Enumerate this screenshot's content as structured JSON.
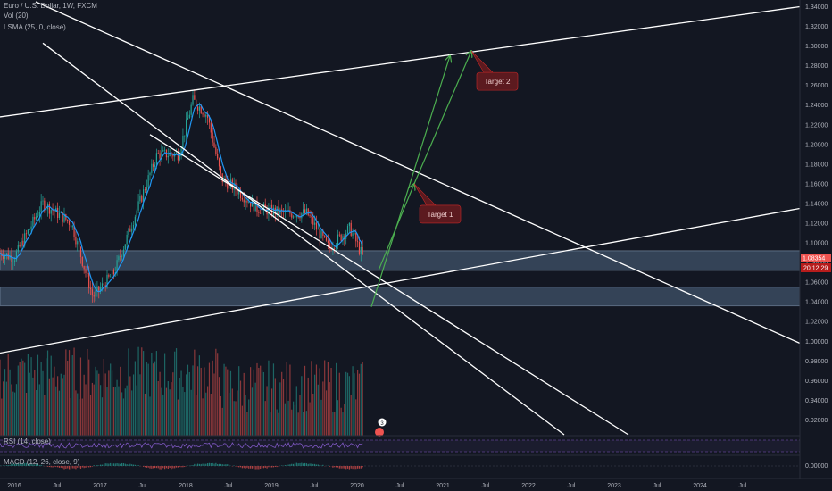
{
  "header": {
    "symbol_line": "Euro / U.S. Dollar, 1W, FXCM",
    "vol_label": "Vol (20)",
    "lsma_label": "LSMA (25, 0, close)"
  },
  "indicators": {
    "rsi_label": "RSI (14, close)",
    "macd_label": "MACD (12, 26, close, 9)"
  },
  "price_badges": {
    "last_price": "1.08354",
    "countdown": "20:12:29"
  },
  "colors": {
    "background": "#131722",
    "up": "#26a69a",
    "down": "#ef5350",
    "lsma": "#2196f3",
    "trendline": "#ffffff",
    "arrow": "#4caf50",
    "zone": "#5d7a99",
    "label_bg": "#5c1a1f",
    "rsi": "#7e57c2"
  },
  "chart_data": {
    "type": "candlestick",
    "title": "Euro / U.S. Dollar, 1W, FXCM",
    "y_axis": {
      "side": "right",
      "ticks": [
        "1.34000",
        "1.32000",
        "1.30000",
        "1.28000",
        "1.26000",
        "1.24000",
        "1.22000",
        "1.20000",
        "1.18000",
        "1.16000",
        "1.14000",
        "1.12000",
        "1.10000",
        "1.08000",
        "1.06000",
        "1.04000",
        "1.02000",
        "1.00000",
        "0.98000",
        "0.96000",
        "0.94000",
        "0.92000"
      ],
      "range": [
        0.905,
        1.345
      ]
    },
    "x_axis": {
      "ticks": [
        "2016",
        "Jul",
        "2017",
        "Jul",
        "2018",
        "Jul",
        "2019",
        "Jul",
        "2020",
        "Jul",
        "2021",
        "Jul",
        "2022",
        "Jul",
        "2023",
        "Jul",
        "2024",
        "Jul"
      ],
      "range": [
        "2015-11",
        "2025-03"
      ]
    },
    "price_path": [
      [
        "2015-11",
        1.09
      ],
      [
        "2016-01",
        1.085
      ],
      [
        "2016-05",
        1.14
      ],
      [
        "2016-09",
        1.12
      ],
      [
        "2016-12",
        1.045
      ],
      [
        "2017-03",
        1.07
      ],
      [
        "2017-06",
        1.13
      ],
      [
        "2017-09",
        1.19
      ],
      [
        "2017-12",
        1.19
      ],
      [
        "2018-02",
        1.245
      ],
      [
        "2018-04",
        1.23
      ],
      [
        "2018-06",
        1.165
      ],
      [
        "2018-08",
        1.155
      ],
      [
        "2018-11",
        1.135
      ],
      [
        "2019-03",
        1.13
      ],
      [
        "2019-06",
        1.13
      ],
      [
        "2019-09",
        1.095
      ],
      [
        "2019-12",
        1.115
      ],
      [
        "2020-02",
        1.083
      ]
    ],
    "zones": [
      {
        "from": 1.072,
        "to": 1.092
      },
      {
        "from": 1.036,
        "to": 1.055
      }
    ],
    "trendlines": [
      {
        "from": [
          "2015-11",
          1.228
        ],
        "to": [
          "2025-03",
          1.34
        ]
      },
      {
        "from": [
          "2015-11",
          0.988
        ],
        "to": [
          "2025-03",
          1.135
        ]
      },
      {
        "from": [
          "2016-04",
          1.345
        ],
        "to": [
          "2025-03",
          0.998
        ]
      },
      {
        "from": [
          "2016-05",
          1.303
        ],
        "to": [
          "2022-06",
          0.905
        ]
      },
      {
        "from": [
          "2017-08",
          1.21
        ],
        "to": [
          "2023-03",
          0.905
        ]
      }
    ],
    "arrows": [
      {
        "from": [
          "2020-03",
          1.035
        ],
        "to": [
          "2021-02",
          1.29
        ]
      },
      {
        "from": [
          "2020-04",
          1.072
        ],
        "to": [
          "2020-09",
          1.16
        ]
      },
      {
        "from": [
          "2020-09",
          1.16
        ],
        "to": [
          "2021-05",
          1.295
        ]
      }
    ],
    "annotations": [
      {
        "text": "Target 1",
        "at": [
          "2020-09",
          1.16
        ]
      },
      {
        "text": "Target 2",
        "at": [
          "2021-05",
          1.295
        ]
      }
    ],
    "last_price": 1.08354,
    "grid": false,
    "legend": "top-left"
  }
}
